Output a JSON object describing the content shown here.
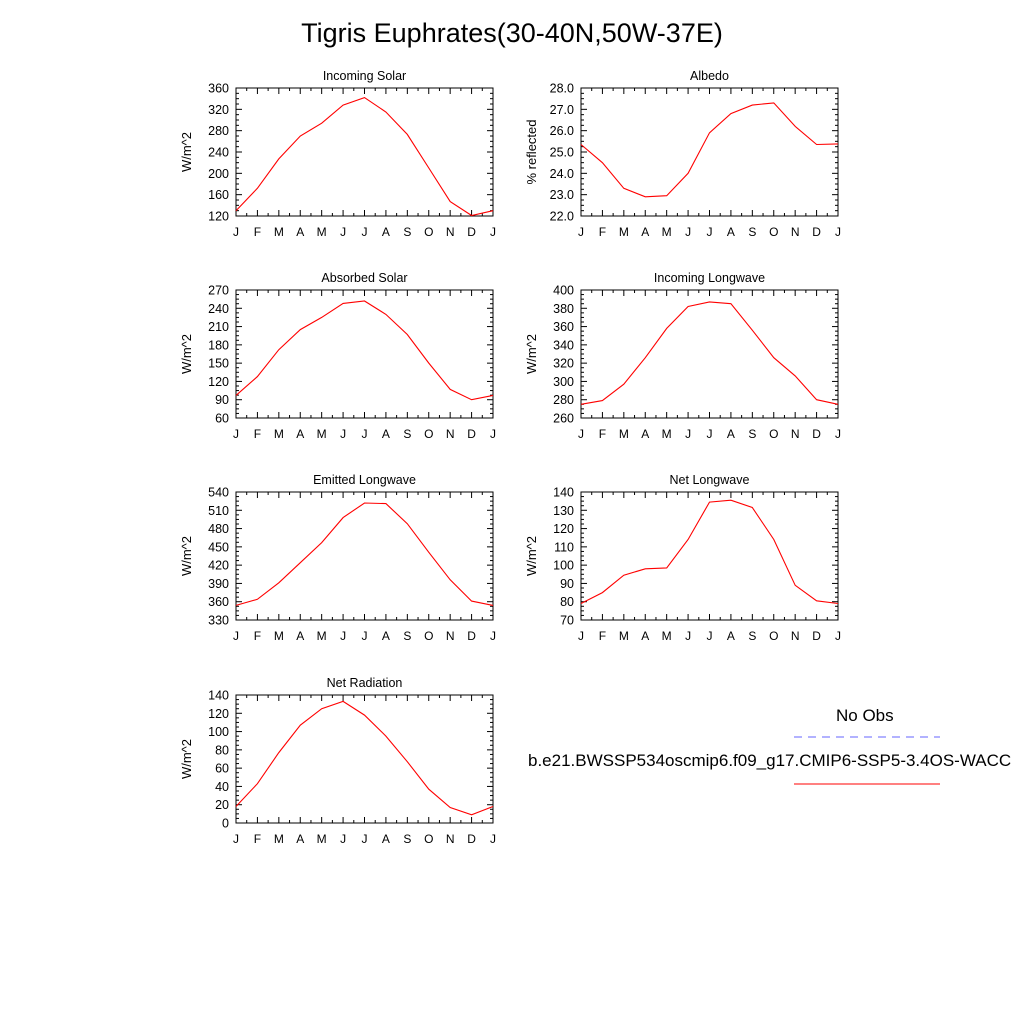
{
  "title": "Tigris Euphrates(30-40N,50W-37E)",
  "legend": {
    "obs_label": "No Obs",
    "obs_color": "#6666ff",
    "model_label": "b.e21.BWSSP534oscmip6.f09_g17.CMIP6-SSP5-3.4OS-WACC",
    "model_color": "#ff0000"
  },
  "chart_data": [
    {
      "type": "line",
      "title": "Incoming Solar",
      "ylabel": "W/m^2",
      "x": [
        "J",
        "F",
        "M",
        "A",
        "M",
        "J",
        "J",
        "A",
        "S",
        "O",
        "N",
        "D",
        "J"
      ],
      "ylim": [
        120,
        360
      ],
      "yticks": [
        "360",
        "320",
        "280",
        "240",
        "200",
        "160",
        "120"
      ],
      "series": [
        {
          "values": [
            130,
            172,
            227,
            270,
            294,
            328,
            342,
            315,
            273,
            210,
            147,
            121,
            130
          ]
        }
      ]
    },
    {
      "type": "line",
      "title": "Albedo",
      "ylabel": "% reflected",
      "x": [
        "J",
        "F",
        "M",
        "A",
        "M",
        "J",
        "J",
        "A",
        "S",
        "O",
        "N",
        "D",
        "J"
      ],
      "ylim": [
        22.0,
        28.0
      ],
      "yticks": [
        "28.0",
        "27.0",
        "26.0",
        "25.0",
        "24.0",
        "23.0",
        "22.0"
      ],
      "series": [
        {
          "values": [
            25.35,
            24.5,
            23.3,
            22.9,
            22.95,
            24.0,
            25.9,
            26.8,
            27.2,
            27.3,
            26.2,
            25.35,
            25.38
          ]
        }
      ]
    },
    {
      "type": "line",
      "title": "Absorbed Solar",
      "ylabel": "W/m^2",
      "x": [
        "J",
        "F",
        "M",
        "A",
        "M",
        "J",
        "J",
        "A",
        "S",
        "O",
        "N",
        "D",
        "J"
      ],
      "ylim": [
        60,
        270
      ],
      "yticks": [
        "270",
        "240",
        "210",
        "180",
        "150",
        "120",
        "90",
        "60"
      ],
      "series": [
        {
          "values": [
            97,
            128,
            172,
            205,
            225,
            248,
            252,
            230,
            197,
            150,
            107,
            90,
            97
          ]
        }
      ]
    },
    {
      "type": "line",
      "title": "Incoming Longwave",
      "ylabel": "W/m^2",
      "x": [
        "J",
        "F",
        "M",
        "A",
        "M",
        "J",
        "J",
        "A",
        "S",
        "O",
        "N",
        "D",
        "J"
      ],
      "ylim": [
        260,
        400
      ],
      "yticks": [
        "400",
        "380",
        "360",
        "340",
        "320",
        "300",
        "280",
        "260"
      ],
      "series": [
        {
          "values": [
            275,
            279,
            297,
            326,
            358,
            382,
            387,
            385,
            356,
            326,
            306,
            280,
            275
          ]
        }
      ]
    },
    {
      "type": "line",
      "title": "Emitted Longwave",
      "ylabel": "W/m^2",
      "x": [
        "J",
        "F",
        "M",
        "A",
        "M",
        "J",
        "J",
        "A",
        "S",
        "O",
        "N",
        "D",
        "J"
      ],
      "ylim": [
        330,
        540
      ],
      "yticks": [
        "540",
        "510",
        "480",
        "450",
        "420",
        "390",
        "360",
        "330"
      ],
      "series": [
        {
          "values": [
            354,
            364,
            391,
            424,
            457,
            498,
            522,
            521,
            488,
            441,
            396,
            361,
            354
          ]
        }
      ]
    },
    {
      "type": "line",
      "title": "Net Longwave",
      "ylabel": "W/m^2",
      "x": [
        "J",
        "F",
        "M",
        "A",
        "M",
        "J",
        "J",
        "A",
        "S",
        "O",
        "N",
        "D",
        "J"
      ],
      "ylim": [
        70,
        140
      ],
      "yticks": [
        "140",
        "130",
        "120",
        "110",
        "100",
        "90",
        "80",
        "70"
      ],
      "series": [
        {
          "values": [
            79,
            85,
            94.5,
            98,
            98.5,
            114,
            134.5,
            135.5,
            131.5,
            114,
            89,
            80.5,
            79
          ]
        }
      ]
    },
    {
      "type": "line",
      "title": "Net Radiation",
      "ylabel": "W/m^2",
      "x": [
        "J",
        "F",
        "M",
        "A",
        "M",
        "J",
        "J",
        "A",
        "S",
        "O",
        "N",
        "D",
        "J"
      ],
      "ylim": [
        0,
        140
      ],
      "yticks": [
        "140",
        "120",
        "100",
        "80",
        "60",
        "40",
        "20",
        "0"
      ],
      "series": [
        {
          "values": [
            18,
            43,
            77,
            107,
            125,
            133,
            118,
            95,
            67,
            37,
            17,
            9,
            18
          ]
        }
      ]
    }
  ]
}
